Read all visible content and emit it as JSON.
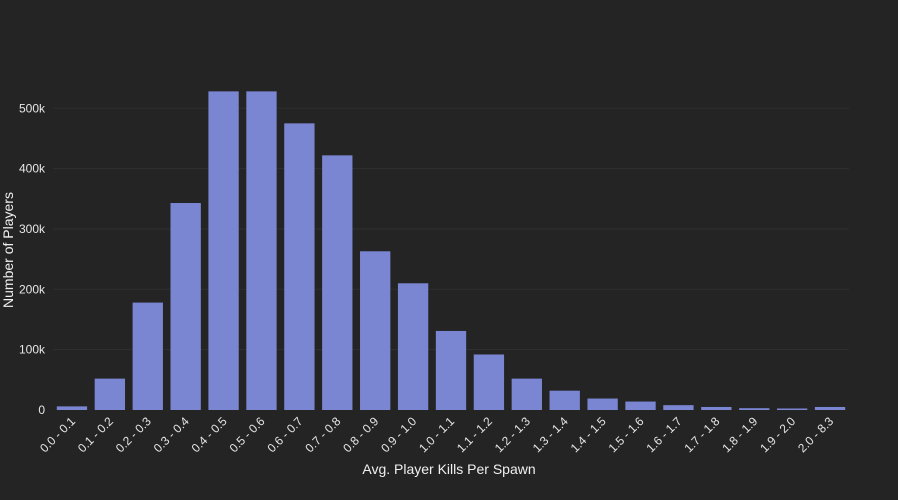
{
  "chart_data": {
    "type": "bar",
    "title": "",
    "xlabel": "Avg. Player Kills Per Spawn",
    "ylabel": "Number of Players",
    "categories": [
      "0.0 - 0.1",
      "0.1 - 0.2",
      "0.2 - 0.3",
      "0.3 - 0.4",
      "0.4 - 0.5",
      "0.5 - 0.6",
      "0.6 - 0.7",
      "0.7 - 0.8",
      "0.8 - 0.9",
      "0.9 - 1.0",
      "1.0 - 1.1",
      "1.1 - 1.2",
      "1.2 - 1.3",
      "1.3 - 1.4",
      "1.4 - 1.5",
      "1.5 - 1.6",
      "1.6 - 1.7",
      "1.7 - 1.8",
      "1.8 - 1.9",
      "1.9 - 2.0",
      "2.0 - 8.3"
    ],
    "values": [
      6000,
      52000,
      178000,
      343000,
      528000,
      528000,
      475000,
      422000,
      263000,
      210000,
      131000,
      92000,
      52000,
      32000,
      19000,
      14000,
      8000,
      5000,
      3000,
      2500,
      5000
    ],
    "ylim": [
      0,
      580000
    ],
    "yticks": [
      0,
      100000,
      200000,
      300000,
      400000,
      500000
    ],
    "ytick_labels": [
      "0",
      "100k",
      "200k",
      "300k",
      "400k",
      "500k"
    ],
    "grid": true,
    "bar_color": "#7b86d3",
    "background": "#242424"
  }
}
